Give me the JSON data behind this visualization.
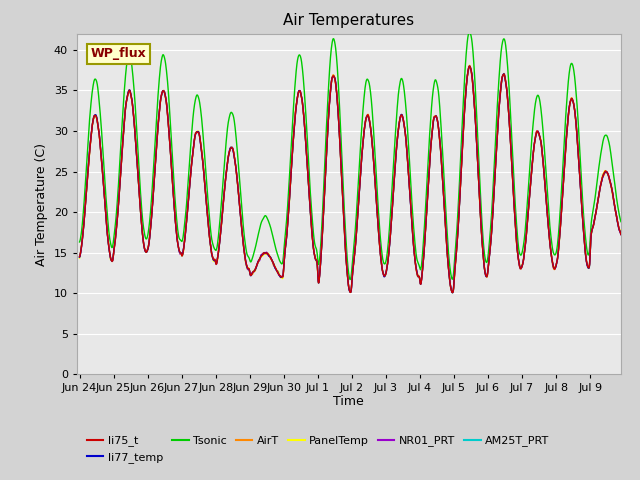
{
  "title": "Air Temperatures",
  "xlabel": "Time",
  "ylabel": "Air Temperature (C)",
  "ylim": [
    0,
    42
  ],
  "yticks": [
    0,
    5,
    10,
    15,
    20,
    25,
    30,
    35,
    40
  ],
  "bg_color": "#e8e8e8",
  "legend_entries": [
    "li75_t",
    "li77_temp",
    "Tsonic",
    "AirT",
    "PanelTemp",
    "NR01_PRT",
    "AM25T_PRT"
  ],
  "line_colors": [
    "#cc0000",
    "#0000cc",
    "#00cc00",
    "#ff8800",
    "#ffff00",
    "#9900cc",
    "#00cccc"
  ],
  "annotation_text": "WP_flux",
  "annotation_color": "#880000",
  "annotation_bg": "#ffffcc",
  "annotation_border": "#999900",
  "start_day": 174,
  "end_day": 190,
  "x_tick_labels": [
    "Jun 24",
    "Jun 25",
    "Jun 26",
    "Jun 27",
    "Jun 28",
    "Jun 29",
    "Jun 30",
    "Jul 1",
    "Jul 2",
    "Jul 3",
    "Jul 4",
    "Jul 5",
    "Jul 6",
    "Jul 7",
    "Jul 8",
    "Jul 9"
  ],
  "x_tick_positions": [
    174,
    175,
    176,
    177,
    178,
    179,
    180,
    181,
    182,
    183,
    184,
    185,
    186,
    187,
    188,
    189
  ]
}
